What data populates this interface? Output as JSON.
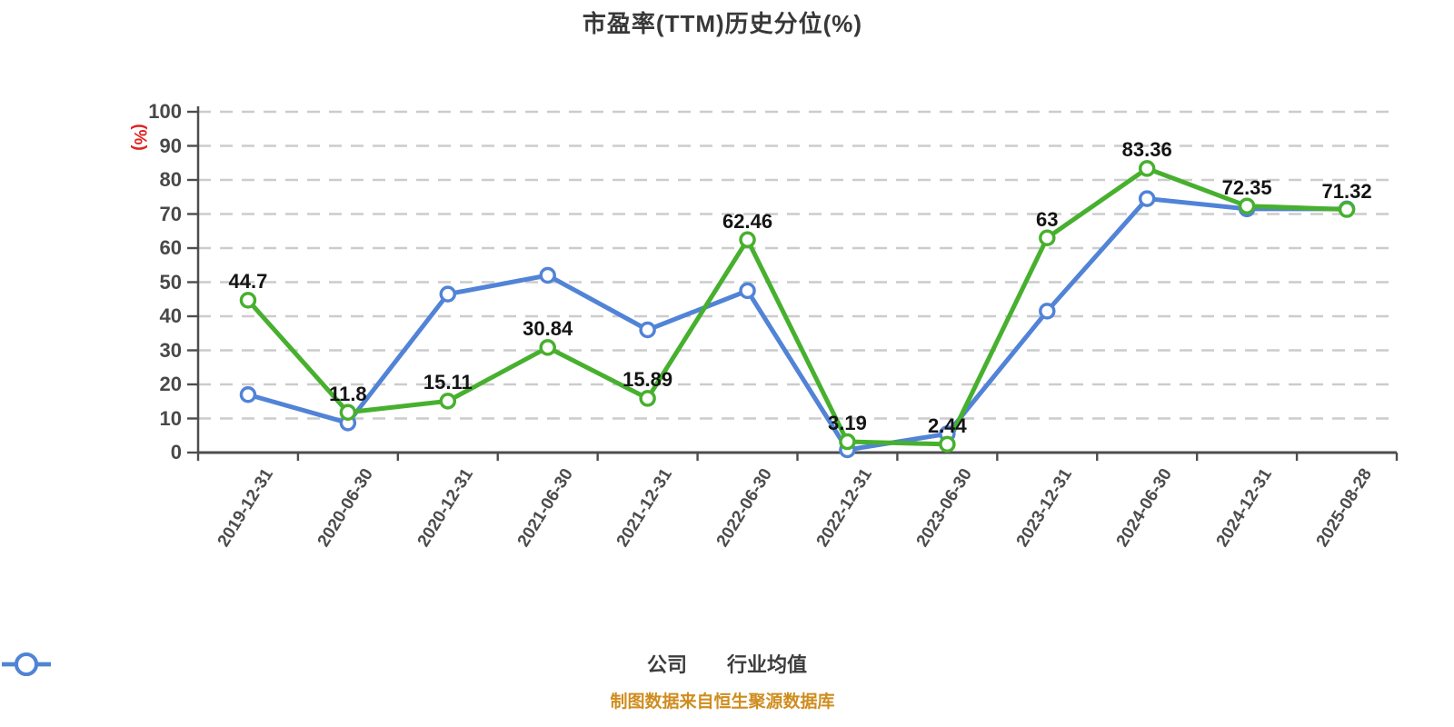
{
  "title": "市盈率(TTM)历史分位(%)",
  "footer": {
    "source_note": "制图数据来自恒生聚源数据库"
  },
  "chart_data": {
    "type": "line",
    "title": "市盈率(TTM)历史分位(%)",
    "ylabel": "(%)",
    "ylim": [
      0,
      100
    ],
    "ytick_step": 10,
    "grid": "horizontal-dashed",
    "legend_position": "bottom",
    "categories": [
      "2019-12-31",
      "2020-06-30",
      "2020-12-31",
      "2021-06-30",
      "2021-12-31",
      "2022-06-30",
      "2022-12-31",
      "2023-06-30",
      "2023-12-31",
      "2024-06-30",
      "2024-12-31",
      "2025-08-28"
    ],
    "series": [
      {
        "name": "公司",
        "color": "#47b02e",
        "values": [
          44.7,
          11.8,
          15.11,
          30.84,
          15.89,
          62.46,
          3.19,
          2.44,
          63,
          83.36,
          72.35,
          71.32
        ],
        "point_labels": [
          "44.7",
          "11.8",
          "15.11",
          "30.84",
          "15.89",
          "62.46",
          "3.19",
          "2.44",
          "63",
          "83.36",
          "72.35",
          "71.32"
        ]
      },
      {
        "name": "行业均值",
        "color": "#5183d7",
        "values": [
          17,
          8.7,
          46.5,
          52,
          36,
          47.5,
          0.8,
          5.5,
          41.5,
          74.5,
          71.5,
          71.5
        ],
        "point_labels": []
      }
    ],
    "colors": {
      "grid": "#cccccc",
      "axis": "#4d4d4d",
      "tick_label": "#484848",
      "data_label": "#141414",
      "unit_label": "#e02121",
      "marker_fill": "#ffffff",
      "title": "#383838",
      "footer": "#cf8d1f"
    }
  }
}
